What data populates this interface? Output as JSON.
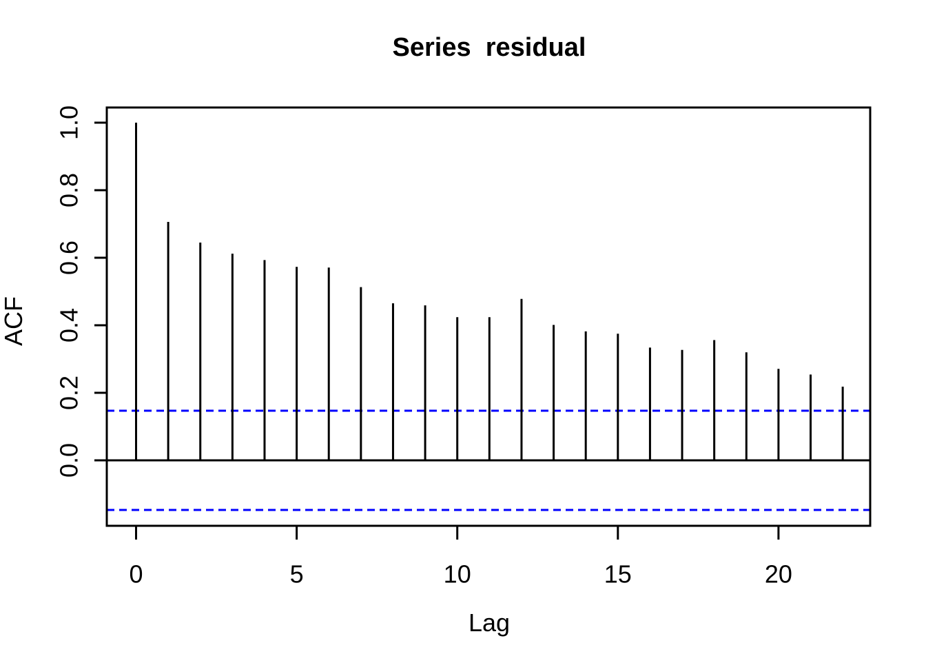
{
  "chart_data": {
    "type": "bar",
    "subtype": "acf-stem-plot",
    "title": "Series  residual",
    "xlabel": "Lag",
    "ylabel": "ACF",
    "x": [
      0,
      1,
      2,
      3,
      4,
      5,
      6,
      7,
      8,
      9,
      10,
      11,
      12,
      13,
      14,
      15,
      16,
      17,
      18,
      19,
      20,
      21,
      22
    ],
    "values": [
      1.0,
      0.706,
      0.645,
      0.612,
      0.593,
      0.573,
      0.571,
      0.513,
      0.465,
      0.459,
      0.424,
      0.424,
      0.478,
      0.401,
      0.382,
      0.375,
      0.334,
      0.327,
      0.356,
      0.32,
      0.271,
      0.254,
      0.218
    ],
    "confidence_bounds": {
      "upper": 0.147,
      "lower": -0.147,
      "style": "dashed"
    },
    "zero_line": 0,
    "xlim": [
      -0.91,
      22.87
    ],
    "ylim": [
      -0.194,
      1.047
    ],
    "x_ticks": {
      "positions": [
        0,
        5,
        10,
        15,
        20
      ],
      "labels": [
        "0",
        "5",
        "10",
        "15",
        "20"
      ]
    },
    "y_ticks": {
      "positions": [
        0.0,
        0.2,
        0.4,
        0.6,
        0.8,
        1.0
      ],
      "labels": [
        "0.0",
        "0.2",
        "0.4",
        "0.6",
        "0.8",
        "1.0"
      ]
    },
    "grid": false,
    "legend": "none",
    "colors": {
      "spike": "#000000",
      "confidence_line": "#0000ff",
      "axis": "#000000",
      "background": "#ffffff"
    }
  }
}
